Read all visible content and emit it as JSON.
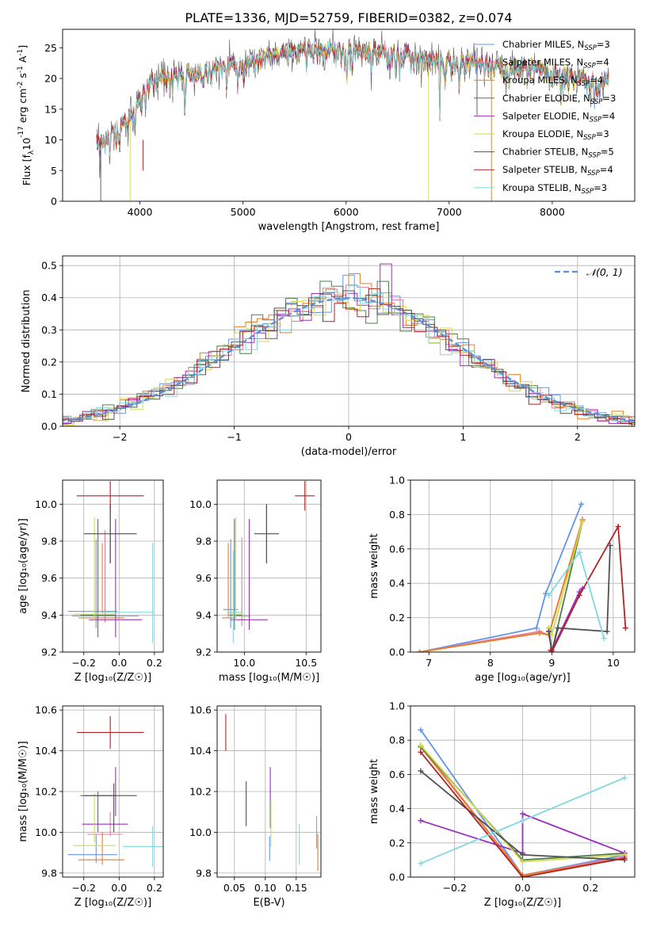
{
  "title": "PLATE=1336, MJD=52759, FIBERID=0382, z=0.074",
  "colors": [
    "#6495ed",
    "#e87ca0",
    "#e67e22",
    "#4e7f4e",
    "#9b30c0",
    "#d4d94a",
    "#505050",
    "#b22222",
    "#80d8e0"
  ],
  "chart_data": [
    {
      "id": "spectrum",
      "type": "line",
      "xlabel": "wavelength [Angstrom, rest frame]",
      "ylabel": "Flux [f$_\\lambda$10$^{-17}$ erg cm$^{-2}$ s$^{-1}$ A$^{-1}$]",
      "ylabel_parts": [
        "Flux [f",
        "λ",
        "10",
        "-17",
        " erg cm",
        "-2",
        " s",
        "-1",
        " A",
        "-1",
        "]"
      ],
      "xlim": [
        3250,
        8800
      ],
      "ylim": [
        0,
        28
      ],
      "xticks": [
        4000,
        5000,
        6000,
        7000,
        8000
      ],
      "yticks": [
        0,
        5,
        10,
        15,
        20,
        25
      ],
      "grid": false,
      "legend_placement": "top-right",
      "series": [
        {
          "name": "Chabrier MILES, N",
          "sub": "SSP",
          "suffix": "=3"
        },
        {
          "name": "Salpeter MILES, N",
          "sub": "SSP",
          "suffix": "=4"
        },
        {
          "name": "Kroupa MILES, N",
          "sub": "SSP",
          "suffix": "=4"
        },
        {
          "name": "Chabrier ELODIE, N",
          "sub": "SSP",
          "suffix": "=3"
        },
        {
          "name": "Salpeter ELODIE, N",
          "sub": "SSP",
          "suffix": "=4"
        },
        {
          "name": "Kroupa ELODIE, N",
          "sub": "SSP",
          "suffix": "=3"
        },
        {
          "name": "Chabrier STELIB, N",
          "sub": "SSP",
          "suffix": "=5"
        },
        {
          "name": "Salpeter STELIB, N",
          "sub": "SSP",
          "suffix": "=4"
        },
        {
          "name": "Kroupa STELIB, N",
          "sub": "SSP",
          "suffix": "=3"
        }
      ],
      "continuum": {
        "x": [
          3580,
          3700,
          3900,
          4000,
          4100,
          4300,
          4600,
          5000,
          5300,
          5600,
          5900,
          6200,
          6500,
          6800,
          7100,
          7400,
          7800,
          8100,
          8300,
          8550
        ],
        "y": [
          9.5,
          11,
          14,
          17,
          20,
          20.5,
          21.5,
          23,
          24,
          24.8,
          25,
          24.8,
          24.5,
          23.5,
          23,
          22.5,
          22,
          21,
          20.5,
          19.5
        ]
      }
    },
    {
      "id": "residuals",
      "type": "step",
      "xlabel": "(data-model)/error",
      "ylabel": "Normed distribution",
      "xlim": [
        -2.5,
        2.5
      ],
      "ylim": [
        0,
        0.53
      ],
      "xticks": [
        -2,
        -1,
        0,
        1,
        2
      ],
      "xtick_labels": [
        "−2",
        "−1",
        "0",
        "1",
        "2"
      ],
      "yticks": [
        0.0,
        0.1,
        0.2,
        0.3,
        0.4,
        0.5
      ],
      "ytick_labels": [
        "0.0",
        "0.1",
        "0.2",
        "0.3",
        "0.4",
        "0.5"
      ],
      "grid": true,
      "legend": "𝒩(0, 1)",
      "legend_placement": "top-right",
      "bin_width": 0.1
    },
    {
      "id": "age-vs-Z",
      "type": "errorbar",
      "xlabel": "Z [log₁₀(Z/Z☉)]",
      "ylabel": "age  [log₁₀(age/yr)]",
      "xlim": [
        -0.32,
        0.25
      ],
      "ylim": [
        9.2,
        10.13
      ],
      "xticks": [
        -0.2,
        0.0,
        0.2
      ],
      "xtick_labels": [
        "−0.2",
        "0.0",
        "0.2"
      ],
      "yticks": [
        9.2,
        9.4,
        9.6,
        9.8,
        10.0
      ],
      "ytick_labels": [
        "9.2",
        "9.4",
        "9.6",
        "9.8",
        "10.0"
      ],
      "grid": true,
      "points": [
        {
          "x": -0.15,
          "xerr": 0.14,
          "y": 9.42,
          "yerr": 0.0,
          "c": 0
        },
        {
          "x": -0.13,
          "xerr": 0.0,
          "y": 9.57,
          "yerr": 0.24,
          "c": 0
        },
        {
          "x": -0.08,
          "xerr": 0.19,
          "y": 9.395,
          "yerr": 0.0,
          "c": 1
        },
        {
          "x": -0.08,
          "xerr": 0.0,
          "y": 9.61,
          "yerr": 0.25,
          "c": 1
        },
        {
          "x": -0.1,
          "xerr": 0.13,
          "y": 9.385,
          "yerr": 0.0,
          "c": 2
        },
        {
          "x": -0.095,
          "xerr": 0.0,
          "y": 9.6,
          "yerr": 0.19,
          "c": 2
        },
        {
          "x": -0.12,
          "xerr": 0.1,
          "y": 9.4,
          "yerr": 0.0,
          "c": 3
        },
        {
          "x": -0.12,
          "xerr": 0.0,
          "y": 9.6,
          "yerr": 0.32,
          "c": 3
        },
        {
          "x": -0.02,
          "xerr": 0.15,
          "y": 9.375,
          "yerr": 0.0,
          "c": 4
        },
        {
          "x": -0.02,
          "xerr": 0.0,
          "y": 9.6,
          "yerr": 0.32,
          "c": 4
        },
        {
          "x": -0.14,
          "xerr": 0.12,
          "y": 9.405,
          "yerr": 0.0,
          "c": 5
        },
        {
          "x": -0.14,
          "xerr": 0.0,
          "y": 9.65,
          "yerr": 0.28,
          "c": 5
        },
        {
          "x": -0.05,
          "xerr": 0.15,
          "y": 9.84,
          "yerr": 0.16,
          "c": 6
        },
        {
          "x": -0.05,
          "xerr": 0.0,
          "y": 9.84,
          "yerr": 0.16,
          "c": 6
        },
        {
          "x": -0.05,
          "xerr": 0.19,
          "y": 10.045,
          "yerr": 0.08,
          "c": 7
        },
        {
          "x": 0.05,
          "xerr": 0.15,
          "y": 9.415,
          "yerr": 0.0,
          "c": 8
        },
        {
          "x": 0.19,
          "xerr": 0.0,
          "y": 9.52,
          "yerr": 0.27,
          "c": 8
        }
      ]
    },
    {
      "id": "age-vs-mass",
      "type": "errorbar",
      "xlabel": "mass [log₁₀(M/M☉)]",
      "ylabel": "",
      "xlim": [
        9.78,
        10.62
      ],
      "ylim": [
        9.2,
        10.13
      ],
      "xticks": [
        10.0,
        10.5
      ],
      "xtick_labels": [
        "10.0",
        "10.5"
      ],
      "yticks": [
        9.2,
        9.4,
        9.6,
        9.8,
        10.0
      ],
      "ytick_labels": [
        "9.2",
        "9.4",
        "9.6",
        "9.8",
        "10.0"
      ],
      "grid": true,
      "points": [
        {
          "x": 9.89,
          "xerr": 0.06,
          "y": 9.43,
          "yerr": 0.0,
          "c": 0
        },
        {
          "x": 9.89,
          "xerr": 0.0,
          "y": 9.57,
          "yerr": 0.24,
          "c": 0
        },
        {
          "x": 9.99,
          "xerr": 0.06,
          "y": 9.395,
          "yerr": 0.0,
          "c": 1
        },
        {
          "x": 9.98,
          "xerr": 0.0,
          "y": 9.58,
          "yerr": 0.24,
          "c": 1
        },
        {
          "x": 9.87,
          "xerr": 0.05,
          "y": 9.385,
          "yerr": 0.0,
          "c": 2
        },
        {
          "x": 9.87,
          "xerr": 0.0,
          "y": 9.59,
          "yerr": 0.2,
          "c": 2
        },
        {
          "x": 9.93,
          "xerr": 0.05,
          "y": 9.4,
          "yerr": 0.0,
          "c": 3
        },
        {
          "x": 9.92,
          "xerr": 0.0,
          "y": 9.62,
          "yerr": 0.3,
          "c": 3
        },
        {
          "x": 10.04,
          "xerr": 0.15,
          "y": 9.375,
          "yerr": 0.0,
          "c": 4
        },
        {
          "x": 10.04,
          "xerr": 0.0,
          "y": 9.62,
          "yerr": 0.3,
          "c": 4
        },
        {
          "x": 9.94,
          "xerr": 0.05,
          "y": 9.405,
          "yerr": 0.0,
          "c": 5
        },
        {
          "x": 9.93,
          "xerr": 0.0,
          "y": 9.65,
          "yerr": 0.28,
          "c": 5
        },
        {
          "x": 10.18,
          "xerr": 0.1,
          "y": 9.84,
          "yerr": 0.16,
          "c": 6
        },
        {
          "x": 10.18,
          "xerr": 0.0,
          "y": 9.84,
          "yerr": 0.16,
          "c": 6
        },
        {
          "x": 10.49,
          "xerr": 0.08,
          "y": 10.045,
          "yerr": 0.08,
          "c": 7
        },
        {
          "x": 9.93,
          "xerr": 0.06,
          "y": 9.415,
          "yerr": 0.0,
          "c": 8
        },
        {
          "x": 9.91,
          "xerr": 0.0,
          "y": 9.5,
          "yerr": 0.25,
          "c": 8
        }
      ]
    },
    {
      "id": "weight-vs-age",
      "type": "line",
      "xlabel": "age  [log₁₀(age/yr)]",
      "ylabel": "mass weight",
      "xlim": [
        6.7,
        10.35
      ],
      "ylim": [
        0,
        1.0
      ],
      "xticks": [
        7,
        8,
        9,
        10
      ],
      "xtick_labels": [
        "7",
        "8",
        "9",
        "10"
      ],
      "yticks": [
        0.0,
        0.2,
        0.4,
        0.6,
        0.8,
        1.0
      ],
      "ytick_labels": [
        "0.0",
        "0.2",
        "0.4",
        "0.6",
        "0.8",
        "1.0"
      ],
      "grid": true,
      "series": [
        {
          "c": 0,
          "x": [
            6.85,
            8.75,
            8.9,
            9.48
          ],
          "y": [
            0.0,
            0.14,
            0.34,
            0.86
          ]
        },
        {
          "c": 1,
          "x": [
            6.85,
            8.8,
            8.95,
            9.5
          ],
          "y": [
            0.0,
            0.12,
            0.1,
            0.77
          ]
        },
        {
          "c": 2,
          "x": [
            6.85,
            8.8,
            8.95,
            9.5
          ],
          "y": [
            0.0,
            0.11,
            0.1,
            0.77
          ]
        },
        {
          "c": 3,
          "x": [
            8.95,
            9.0,
            9.5
          ],
          "y": [
            0.14,
            0.0,
            0.76
          ]
        },
        {
          "c": 4,
          "x": [
            8.95,
            9.0,
            9.45,
            9.5
          ],
          "y": [
            0.12,
            0.01,
            0.35,
            0.37
          ]
        },
        {
          "c": 5,
          "x": [
            8.95,
            9.0,
            9.5
          ],
          "y": [
            0.14,
            0.1,
            0.76
          ]
        },
        {
          "c": 6,
          "x": [
            8.95,
            9.0,
            9.1,
            9.9,
            9.95
          ],
          "y": [
            0.12,
            0.0,
            0.14,
            0.12,
            0.62
          ]
        },
        {
          "c": 7,
          "x": [
            8.98,
            9.0,
            9.45,
            10.08,
            10.2
          ],
          "y": [
            0.01,
            0.0,
            0.33,
            0.73,
            0.14
          ]
        },
        {
          "c": 8,
          "x": [
            8.95,
            9.45,
            9.85
          ],
          "y": [
            0.33,
            0.58,
            0.08
          ]
        }
      ]
    },
    {
      "id": "mass-vs-Z",
      "type": "errorbar",
      "xlabel": "Z [log₁₀(Z/Z☉)]",
      "ylabel": "mass [log₁₀(M/M☉)]",
      "xlim": [
        -0.32,
        0.25
      ],
      "ylim": [
        9.78,
        10.62
      ],
      "xticks": [
        -0.2,
        0.0,
        0.2
      ],
      "xtick_labels": [
        "−0.2",
        "0.0",
        "0.2"
      ],
      "yticks": [
        9.8,
        10.0,
        10.2,
        10.4,
        10.6
      ],
      "ytick_labels": [
        "9.8",
        "10.0",
        "10.2",
        "10.4",
        "10.6"
      ],
      "grid": true,
      "points": [
        {
          "x": -0.15,
          "xerr": 0.14,
          "y": 9.89,
          "yerr": 0.0,
          "c": 0
        },
        {
          "x": -0.13,
          "xerr": 0.0,
          "y": 9.92,
          "yerr": 0.07,
          "c": 0
        },
        {
          "x": -0.08,
          "xerr": 0.1,
          "y": 9.99,
          "yerr": 0.0,
          "c": 1
        },
        {
          "x": -0.05,
          "xerr": 0.0,
          "y": 10.04,
          "yerr": 0.06,
          "c": 1
        },
        {
          "x": -0.1,
          "xerr": 0.13,
          "y": 9.865,
          "yerr": 0.0,
          "c": 2
        },
        {
          "x": -0.095,
          "xerr": 0.0,
          "y": 9.92,
          "yerr": 0.08,
          "c": 2
        },
        {
          "x": -0.12,
          "xerr": 0.0,
          "y": 10.1,
          "yerr": 0.1,
          "c": 3
        },
        {
          "x": -0.12,
          "xerr": 0.1,
          "y": 10.18,
          "yerr": 0.0,
          "c": 3
        },
        {
          "x": -0.08,
          "xerr": 0.13,
          "y": 10.04,
          "yerr": 0.0,
          "c": 4
        },
        {
          "x": -0.02,
          "xerr": 0.0,
          "y": 10.2,
          "yerr": 0.12,
          "c": 4
        },
        {
          "x": -0.14,
          "xerr": 0.12,
          "y": 9.935,
          "yerr": 0.0,
          "c": 5
        },
        {
          "x": -0.14,
          "xerr": 0.0,
          "y": 10.07,
          "yerr": 0.12,
          "c": 5
        },
        {
          "x": -0.05,
          "xerr": 0.15,
          "y": 10.18,
          "yerr": 0.0,
          "c": 6
        },
        {
          "x": -0.03,
          "xerr": 0.0,
          "y": 10.12,
          "yerr": 0.12,
          "c": 6
        },
        {
          "x": -0.05,
          "xerr": 0.19,
          "y": 10.49,
          "yerr": 0.08,
          "c": 7
        },
        {
          "x": 0.15,
          "xerr": 0.13,
          "y": 9.93,
          "yerr": 0.0,
          "c": 8
        },
        {
          "x": 0.19,
          "xerr": 0.0,
          "y": 9.93,
          "yerr": 0.1,
          "c": 8
        }
      ]
    },
    {
      "id": "mass-vs-EBV",
      "type": "errorbar",
      "xlabel": "E(B-V)",
      "ylabel": "",
      "xlim": [
        0.022,
        0.19
      ],
      "ylim": [
        9.78,
        10.62
      ],
      "xticks": [
        0.05,
        0.1,
        0.15
      ],
      "xtick_labels": [
        "0.05",
        "0.10",
        "0.15"
      ],
      "yticks": [
        9.8,
        10.0,
        10.2,
        10.4,
        10.6
      ],
      "ytick_labels": [
        "9.8",
        "10.0",
        "10.2",
        "10.4",
        "10.6"
      ],
      "grid": true,
      "points": [
        {
          "x": 0.107,
          "xerr": 0.0,
          "y": 9.92,
          "yerr": 0.06,
          "c": 0
        },
        {
          "x": 0.183,
          "xerr": 0.0,
          "y": 10.0,
          "yerr": 0.08,
          "c": 1
        },
        {
          "x": 0.185,
          "xerr": 0.0,
          "y": 9.9,
          "yerr": 0.09,
          "c": 2
        },
        {
          "x": 0.108,
          "xerr": 0.0,
          "y": 10.12,
          "yerr": 0.1,
          "c": 3
        },
        {
          "x": 0.108,
          "xerr": 0.0,
          "y": 10.23,
          "yerr": 0.09,
          "c": 4
        },
        {
          "x": 0.109,
          "xerr": 0.0,
          "y": 10.05,
          "yerr": 0.12,
          "c": 5
        },
        {
          "x": 0.069,
          "xerr": 0.0,
          "y": 10.14,
          "yerr": 0.11,
          "c": 6
        },
        {
          "x": 0.036,
          "xerr": 0.0,
          "y": 10.49,
          "yerr": 0.09,
          "c": 7
        },
        {
          "x": 0.155,
          "xerr": 0.0,
          "y": 9.94,
          "yerr": 0.1,
          "c": 8
        }
      ]
    },
    {
      "id": "weight-vs-Z",
      "type": "line",
      "xlabel": "Z [log₁₀(Z/Z☉)]",
      "ylabel": "mass weight",
      "xlim": [
        -0.33,
        0.33
      ],
      "ylim": [
        0,
        1.0
      ],
      "xticks": [
        -0.2,
        0.0,
        0.2
      ],
      "xtick_labels": [
        "−0.2",
        "0.0",
        "0.2"
      ],
      "yticks": [
        0.0,
        0.2,
        0.4,
        0.6,
        0.8,
        1.0
      ],
      "ytick_labels": [
        "0.0",
        "0.2",
        "0.4",
        "0.6",
        "0.8",
        "1.0"
      ],
      "grid": true,
      "series": [
        {
          "c": 0,
          "x": [
            -0.3,
            0.0,
            0.3
          ],
          "y": [
            0.86,
            0.01,
            0.13
          ]
        },
        {
          "c": 1,
          "x": [
            -0.3,
            0.0,
            0.3
          ],
          "y": [
            0.77,
            0.01,
            0.12
          ]
        },
        {
          "c": 2,
          "x": [
            -0.3,
            0.0,
            0.3
          ],
          "y": [
            0.76,
            0.01,
            0.11
          ]
        },
        {
          "c": 3,
          "x": [
            -0.3,
            0.0,
            0.3
          ],
          "y": [
            0.76,
            0.1,
            0.14
          ]
        },
        {
          "c": 4,
          "x": [
            -0.3,
            0.0,
            0.0,
            0.3
          ],
          "y": [
            0.33,
            0.14,
            0.37,
            0.14
          ]
        },
        {
          "c": 5,
          "x": [
            -0.3,
            0.0,
            0.3
          ],
          "y": [
            0.77,
            0.09,
            0.13
          ]
        },
        {
          "c": 6,
          "x": [
            -0.3,
            0.0,
            0.3
          ],
          "y": [
            0.62,
            0.13,
            0.1
          ]
        },
        {
          "c": 7,
          "x": [
            -0.3,
            0.0,
            0.3
          ],
          "y": [
            0.73,
            0.0,
            0.11
          ]
        },
        {
          "c": 8,
          "x": [
            -0.3,
            0.0,
            0.3
          ],
          "y": [
            0.08,
            0.33,
            0.58
          ]
        }
      ]
    }
  ]
}
